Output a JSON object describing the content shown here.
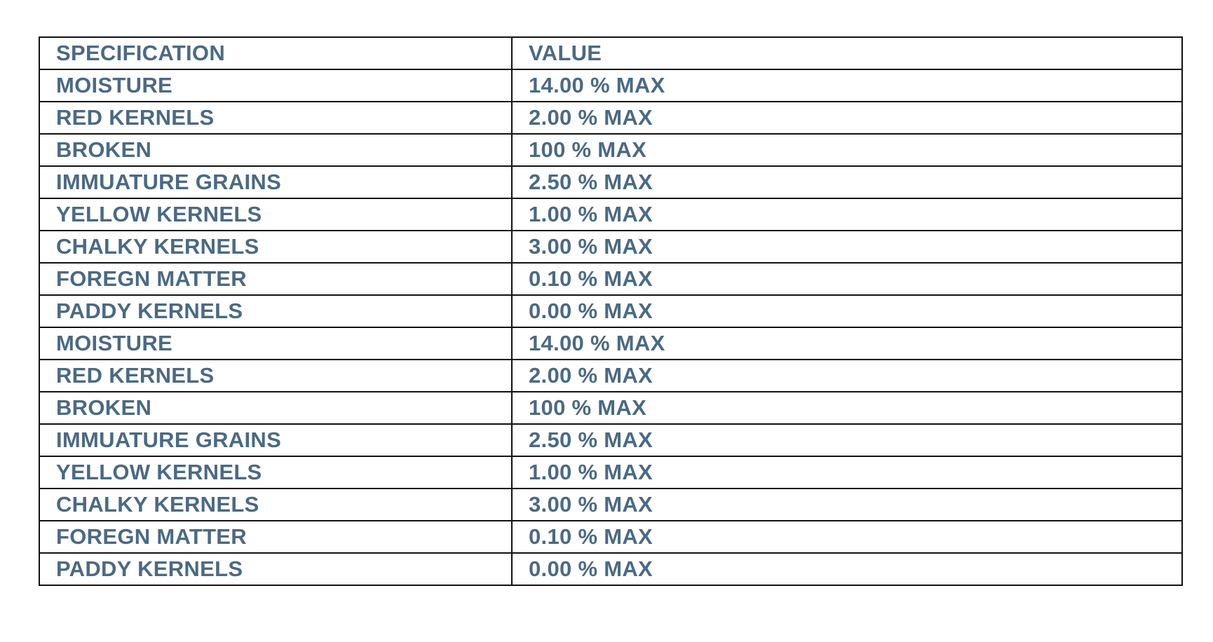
{
  "table": {
    "headers": [
      "SPECIFICATION",
      "VALUE"
    ],
    "rows": [
      [
        "MOISTURE",
        "14.00 % MAX"
      ],
      [
        "RED KERNELS",
        "2.00 % MAX"
      ],
      [
        "BROKEN",
        "100 % MAX"
      ],
      [
        "IMMUATURE GRAINS",
        "2.50 % MAX"
      ],
      [
        "YELLOW KERNELS",
        "1.00 % MAX"
      ],
      [
        "CHALKY KERNELS",
        "3.00 % MAX"
      ],
      [
        "FOREGN MATTER",
        "0.10 % MAX"
      ],
      [
        "PADDY KERNELS",
        "0.00 % MAX"
      ],
      [
        "MOISTURE",
        "14.00 % MAX"
      ],
      [
        "RED KERNELS",
        "2.00 % MAX"
      ],
      [
        "BROKEN",
        "100 % MAX"
      ],
      [
        "IMMUATURE GRAINS",
        "2.50 % MAX"
      ],
      [
        "YELLOW KERNELS",
        "1.00 % MAX"
      ],
      [
        "CHALKY KERNELS",
        "3.00 % MAX"
      ],
      [
        "FOREGN MATTER",
        "0.10 % MAX"
      ],
      [
        "PADDY KERNELS",
        "0.00 % MAX"
      ]
    ]
  },
  "colors": {
    "text": "#4a6a84",
    "border": "#111111",
    "background": "#ffffff"
  }
}
